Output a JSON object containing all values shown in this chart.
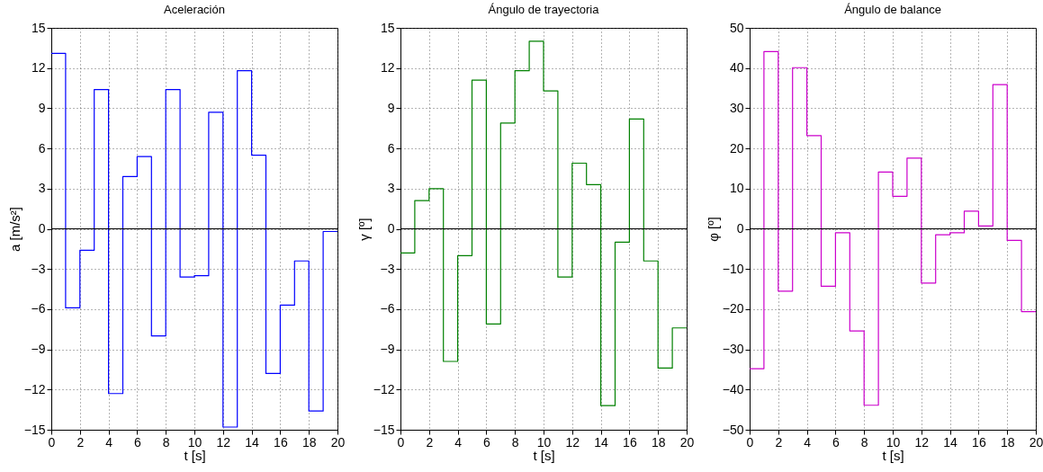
{
  "chart_data": [
    {
      "type": "step",
      "title": "Aceleración",
      "xlabel": "t [s]",
      "ylabel": "a [m/s²]",
      "x": [
        0,
        1,
        2,
        3,
        4,
        5,
        6,
        7,
        8,
        9,
        10,
        11,
        12,
        13,
        14,
        15,
        16,
        17,
        18,
        19,
        20
      ],
      "series": [
        {
          "color": "#0000ff",
          "values": [
            13.1,
            -5.9,
            -1.6,
            10.4,
            -12.3,
            3.9,
            5.4,
            -8.0,
            10.4,
            -3.6,
            -3.5,
            8.7,
            -14.8,
            11.8,
            5.5,
            -10.8,
            -5.7,
            -2.4,
            -13.6,
            -0.2,
            -0.2
          ]
        }
      ],
      "xlim": [
        0,
        20
      ],
      "xticks": [
        0,
        2,
        4,
        6,
        8,
        10,
        12,
        14,
        16,
        18,
        20
      ],
      "ylim": [
        -15,
        15
      ],
      "yticks": [
        -15,
        -12,
        -9,
        -6,
        -3,
        0,
        3,
        6,
        9,
        12,
        15
      ],
      "grid": true,
      "ref_lines": [
        {
          "axis": "y",
          "value": 0,
          "color": "#000000"
        }
      ]
    },
    {
      "type": "step",
      "title": "Ángulo de trayectoria",
      "xlabel": "t [s]",
      "ylabel": "γ [º]",
      "x": [
        0,
        1,
        2,
        3,
        4,
        5,
        6,
        7,
        8,
        9,
        10,
        11,
        12,
        13,
        14,
        15,
        16,
        17,
        18,
        19,
        20
      ],
      "series": [
        {
          "color": "#008000",
          "values": [
            -1.8,
            2.1,
            3.0,
            -9.9,
            -2.0,
            11.1,
            -7.1,
            7.9,
            11.8,
            14.0,
            10.3,
            -3.6,
            4.9,
            3.3,
            -13.2,
            -1.0,
            8.2,
            -2.4,
            -10.4,
            -7.4,
            -7.4
          ]
        }
      ],
      "xlim": [
        0,
        20
      ],
      "xticks": [
        0,
        2,
        4,
        6,
        8,
        10,
        12,
        14,
        16,
        18,
        20
      ],
      "ylim": [
        -15,
        15
      ],
      "yticks": [
        -15,
        -12,
        -9,
        -6,
        -3,
        0,
        3,
        6,
        9,
        12,
        15
      ],
      "grid": true,
      "ref_lines": [
        {
          "axis": "y",
          "value": 0,
          "color": "#000000"
        }
      ]
    },
    {
      "type": "step",
      "title": "Ángulo de balance",
      "xlabel": "t [s]",
      "ylabel": "φ [º]",
      "x": [
        0,
        1,
        2,
        3,
        4,
        5,
        6,
        7,
        8,
        9,
        10,
        11,
        12,
        13,
        14,
        15,
        16,
        17,
        18,
        19,
        20
      ],
      "series": [
        {
          "color": "#cc00cc",
          "values": [
            -34.8,
            44.1,
            -15.5,
            40.1,
            23.2,
            -14.3,
            -1.0,
            -25.4,
            -43.9,
            14.1,
            8.1,
            17.6,
            -13.5,
            -1.5,
            -1.0,
            4.4,
            0.7,
            35.9,
            -2.9,
            -20.6,
            -20.6
          ]
        }
      ],
      "xlim": [
        0,
        20
      ],
      "xticks": [
        0,
        2,
        4,
        6,
        8,
        10,
        12,
        14,
        16,
        18,
        20
      ],
      "ylim": [
        -50,
        50
      ],
      "yticks": [
        -50,
        -40,
        -30,
        -20,
        -10,
        0,
        10,
        20,
        30,
        40,
        50
      ],
      "grid": true,
      "ref_lines": [
        {
          "axis": "y",
          "value": 0,
          "color": "#000000"
        }
      ]
    }
  ]
}
